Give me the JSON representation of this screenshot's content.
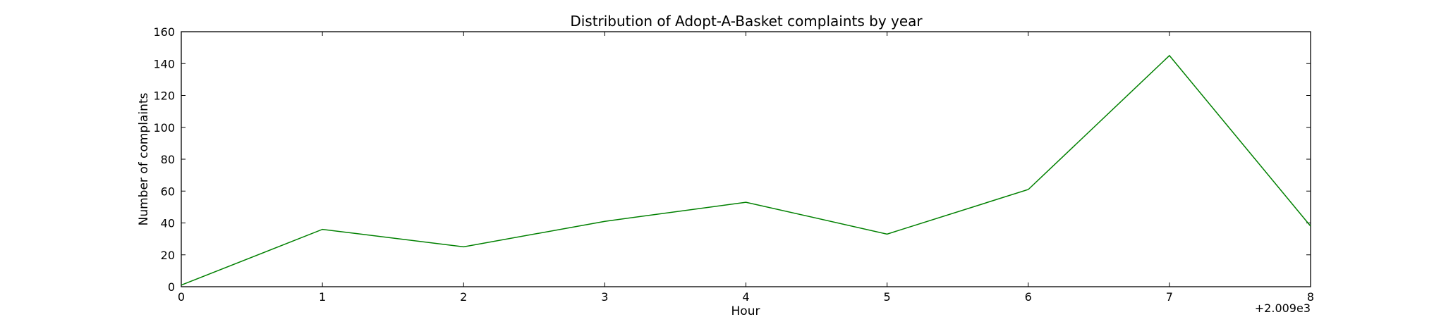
{
  "chart_data": {
    "type": "line",
    "title": "Distribution of  Adopt-A-Basket complaints by year",
    "xlabel": "Hour",
    "ylabel": "Number of complaints",
    "x_offset_label": "+2.009e3",
    "xlim": [
      0,
      8
    ],
    "ylim": [
      0,
      160
    ],
    "xticks": [
      0,
      1,
      2,
      3,
      4,
      5,
      6,
      7,
      8
    ],
    "yticks": [
      0,
      20,
      40,
      60,
      80,
      100,
      120,
      140,
      160
    ],
    "grid": false,
    "series": [
      {
        "color": "#008000",
        "x": [
          0,
          1,
          2,
          3,
          4,
          5,
          6,
          7,
          8
        ],
        "y": [
          1,
          36,
          25,
          41,
          53,
          33,
          61,
          145,
          38
        ]
      }
    ]
  }
}
